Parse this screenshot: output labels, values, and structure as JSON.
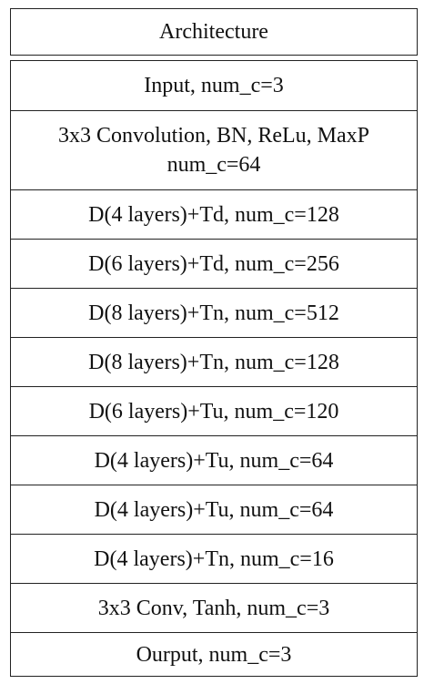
{
  "header": {
    "title": "Architecture"
  },
  "rows": [
    {
      "lines": [
        "Input, num_c=3"
      ]
    },
    {
      "lines": [
        "3x3 Convolution, BN, ReLu, MaxP",
        "num_c=64"
      ]
    },
    {
      "lines": [
        "D(4 layers)+Td, num_c=128"
      ]
    },
    {
      "lines": [
        "D(6 layers)+Td, num_c=256"
      ]
    },
    {
      "lines": [
        "D(8 layers)+Tn, num_c=512"
      ]
    },
    {
      "lines": [
        "D(8 layers)+Tn, num_c=128"
      ]
    },
    {
      "lines": [
        "D(6 layers)+Tu, num_c=120"
      ]
    },
    {
      "lines": [
        "D(4 layers)+Tu, num_c=64"
      ]
    },
    {
      "lines": [
        "D(4 layers)+Tu, num_c=64"
      ]
    },
    {
      "lines": [
        "D(4 layers)+Tn, num_c=16"
      ]
    },
    {
      "lines": [
        "3x3 Conv, Tanh, num_c=3"
      ]
    },
    {
      "lines": [
        "Ourput, num_c=3"
      ]
    }
  ]
}
